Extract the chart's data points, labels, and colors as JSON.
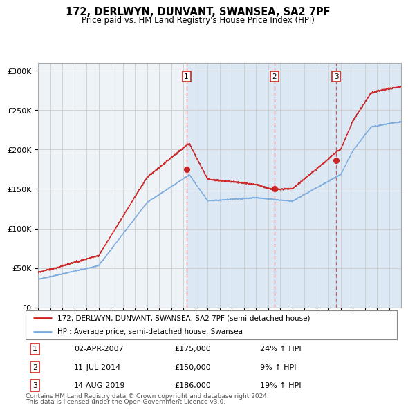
{
  "title": "172, DERLWYN, DUNVANT, SWANSEA, SA2 7PF",
  "subtitle": "Price paid vs. HM Land Registry's House Price Index (HPI)",
  "sale_year_floats": [
    2007.25,
    2014.53,
    2019.62
  ],
  "sale_prices": [
    175000,
    150000,
    186000
  ],
  "sale_labels": [
    "1",
    "2",
    "3"
  ],
  "sale_date_labels": [
    "02-APR-2007",
    "11-JUL-2014",
    "14-AUG-2019"
  ],
  "sale_hpi_pct": [
    "24% ↑ HPI",
    "9% ↑ HPI",
    "19% ↑ HPI"
  ],
  "sale_price_labels": [
    "£175,000",
    "£150,000",
    "£186,000"
  ],
  "red_line_color": "#cc2222",
  "blue_line_color": "#7aaadd",
  "dashed_line_color": "#cc4444",
  "shade_color": "#ddeeff",
  "background_color": "#ffffff",
  "plot_bg_color": "#f0f4f8",
  "grid_color": "#cccccc",
  "legend_line1": "172, DERLWYN, DUNVANT, SWANSEA, SA2 7PF (semi-detached house)",
  "legend_line2": "HPI: Average price, semi-detached house, Swansea",
  "footer1": "Contains HM Land Registry data © Crown copyright and database right 2024.",
  "footer2": "This data is licensed under the Open Government Licence v3.0.",
  "ylim": [
    0,
    310000
  ],
  "yticks": [
    0,
    50000,
    100000,
    150000,
    200000,
    250000,
    300000
  ],
  "xstart_year": 1995,
  "xend_year": 2024,
  "n_points": 3600,
  "noise_seed": 42,
  "noise_scale_hpi": 600,
  "noise_scale_prop": 900
}
